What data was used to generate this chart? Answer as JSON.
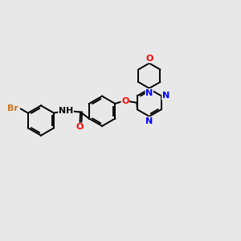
{
  "bg_color": "#e8e8e8",
  "bond_color": "#000000",
  "atom_colors": {
    "Br": "#cc7722",
    "N": "#0000ff",
    "O": "#ff0000"
  },
  "figsize": [
    3.0,
    3.0
  ],
  "dpi": 100,
  "lw": 1.4,
  "ring_r": 0.62,
  "morph_r": 0.52
}
